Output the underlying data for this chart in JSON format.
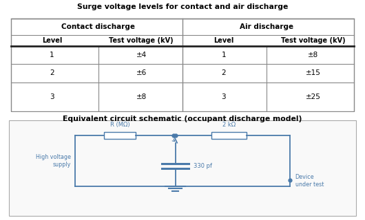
{
  "table_title": "Surge voltage levels for contact and air discharge",
  "circuit_title": "Equivalent circuit schematic (occupant discharge model)",
  "col_headers": [
    "Contact discharge",
    "Air discharge"
  ],
  "row_headers": [
    "Level",
    "Test voltage (kV)",
    "Level",
    "Test voltage (kV)"
  ],
  "data_rows": [
    [
      "1",
      "±4",
      "1",
      "±8"
    ],
    [
      "2",
      "±6",
      "2",
      "±15"
    ],
    [
      "3",
      "±8",
      "3",
      "±25"
    ]
  ],
  "circuit_color": "#4a7aaa",
  "bg_color": "#ffffff",
  "text_color": "#000000",
  "border_color": "#888888"
}
